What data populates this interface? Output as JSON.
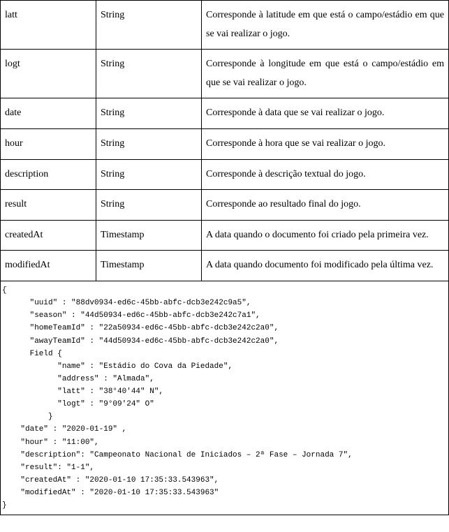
{
  "table": {
    "rows": [
      {
        "name": "latt",
        "type": "String",
        "desc": "Corresponde à latitude em que está o campo/estádio em que se vai realizar o jogo."
      },
      {
        "name": "logt",
        "type": "String",
        "desc": "Corresponde à longitude em que está o campo/estádio em que se vai realizar o jogo."
      },
      {
        "name": "date",
        "type": "String",
        "desc": "Corresponde à data que se vai realizar o jogo."
      },
      {
        "name": "hour",
        "type": "String",
        "desc": "Corresponde à hora que se vai realizar o jogo."
      },
      {
        "name": "description",
        "type": "String",
        "desc": "Corresponde à descrição textual do jogo."
      },
      {
        "name": "result",
        "type": "String",
        "desc": "Corresponde ao resultado final do jogo."
      },
      {
        "name": "createdAt",
        "type": "Timestamp",
        "desc": "A data quando o documento foi criado pela primeira vez."
      },
      {
        "name": "modifiedAt",
        "type": "Timestamp",
        "desc": "A data quando documento foi modificado pela última vez."
      }
    ]
  },
  "code": {
    "l0": "{",
    "l1": "      \"uuid\" : \"88dv0934-ed6c-45bb-abfc-dcb3e242c9a5\",",
    "l2": "      \"season\" : \"44d50934-ed6c-45bb-abfc-dcb3e242c7a1\",",
    "l3": "      \"homeTeamId\" : \"22a50934-ed6c-45bb-abfc-dcb3e242c2a0\",",
    "l4": "      \"awayTeamId\" : \"44d50934-ed6c-45bb-abfc-dcb3e242c2a0\",",
    "l5": "      Field {",
    "l6": "            \"name\" : \"Estádio do Cova da Piedade\",",
    "l7": "            \"address\" : \"Almada\",",
    "l8": "            \"latt\" : \"38°40′44″ N\",",
    "l9": "            \"logt\" : \"9°09′24″ O\"",
    "l10": "          }",
    "l11": "    \"date\" : \"2020-01-19\" ,",
    "l12": "    \"hour\" : \"11:00\",",
    "l13": "    \"description\": \"Campeonato Nacional de Iniciados – 2ª Fase – Jornada 7\",",
    "l14": "    \"result\": \"1-1\",",
    "l15": "    \"createdAt\" : \"2020-01-10 17:35:33.543963\",",
    "l16": "    \"modifiedAt\" : \"2020-01-10 17:35:33.543963\"",
    "l17": "}"
  }
}
